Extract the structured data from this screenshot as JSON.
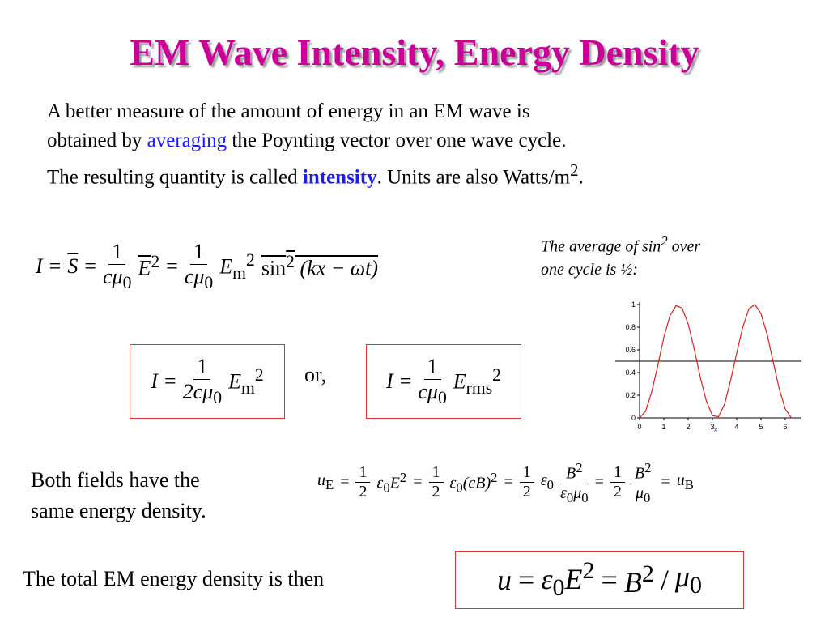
{
  "title": "EM Wave Intensity, Energy Density",
  "intro": {
    "line1": "A better measure of the amount of energy in an EM wave is",
    "line2": [
      "obtained by ",
      "averaging",
      " the Poynting vector over one wave cycle."
    ],
    "line3": [
      "The resulting quantity is called ",
      "intensity",
      ". Units are also Watts/m",
      "2",
      "."
    ]
  },
  "eq1": [
    "I",
    "=",
    "S",
    "=",
    "1",
    "cμ",
    "0",
    "E",
    "2",
    "=",
    "1",
    "cμ",
    "0",
    "E",
    "m",
    "2",
    "sin",
    "2",
    "(kx − ωt)"
  ],
  "note": {
    "line1": [
      "The average of sin",
      "2",
      " over"
    ],
    "line2": "one cycle is ½:"
  },
  "plot": {
    "type": "line",
    "color": "#e0201b",
    "average": 0.5,
    "average_color": "#000000",
    "x": [
      0,
      0.25,
      0.5,
      0.75,
      1,
      1.25,
      1.5,
      1.75,
      2,
      2.25,
      2.5,
      2.75,
      3,
      3.25,
      3.5,
      3.75,
      4,
      4.25,
      4.5,
      4.75,
      5,
      5.25,
      5.5,
      5.75,
      6,
      6.25
    ],
    "values": [
      0,
      0.06,
      0.23,
      0.46,
      0.71,
      0.9,
      0.99,
      0.97,
      0.83,
      0.61,
      0.36,
      0.15,
      0.02,
      0.01,
      0.12,
      0.33,
      0.57,
      0.8,
      0.96,
      1,
      0.92,
      0.74,
      0.5,
      0.26,
      0.08,
      0
    ],
    "xlim": [
      0,
      6.67
    ],
    "ylim": [
      0,
      1
    ],
    "xticks": [
      0,
      1,
      2,
      3,
      4,
      5,
      6
    ],
    "yticks": [
      0,
      0.2,
      0.4,
      0.6,
      0.8,
      1
    ],
    "marker": {
      "value": 3.14,
      "label": "×"
    }
  },
  "eq2": [
    "I",
    "=",
    "1",
    "2cμ",
    "0",
    "E",
    "m",
    "2"
  ],
  "or": "or,",
  "eq3": [
    "I",
    "=",
    "1",
    "cμ",
    "0",
    "E",
    "rms",
    "2"
  ],
  "both": {
    "line1": "Both fields have the",
    "line2": "same energy density."
  },
  "eq4": [
    "u",
    "E",
    "=",
    "1",
    "2",
    "ε",
    "0",
    "E",
    "2",
    "=",
    "1",
    "2",
    "ε",
    "0",
    "(cB)",
    "2",
    "=",
    "1",
    "2",
    "ε",
    "0",
    "B",
    "2",
    "ε",
    "0",
    "μ",
    "0",
    "=",
    "1",
    "2",
    "B",
    "2",
    "μ",
    "0",
    "=",
    "u",
    "B"
  ],
  "total": "The total EM energy density is then",
  "eq5": [
    "u",
    "=",
    "ε",
    "0",
    "E",
    "2",
    "=",
    "B",
    "2",
    "/",
    "μ",
    "0"
  ]
}
